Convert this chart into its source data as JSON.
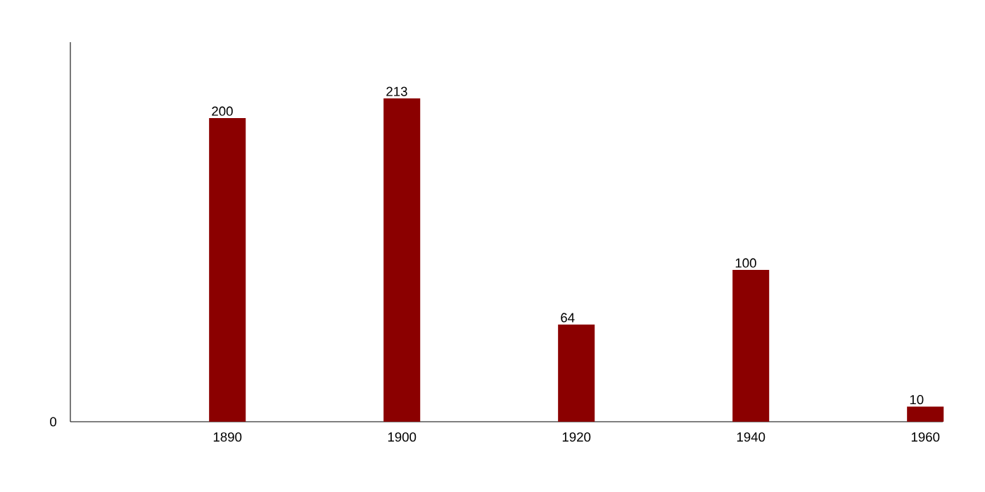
{
  "chart_data": {
    "type": "bar",
    "categories": [
      "1890",
      "1900",
      "1920",
      "1940",
      "1960"
    ],
    "values": [
      200,
      213,
      64,
      100,
      10
    ],
    "color": "#8b0000",
    "ylim": [
      0,
      250
    ],
    "data_labels": true,
    "annotations": [
      "0"
    ]
  }
}
